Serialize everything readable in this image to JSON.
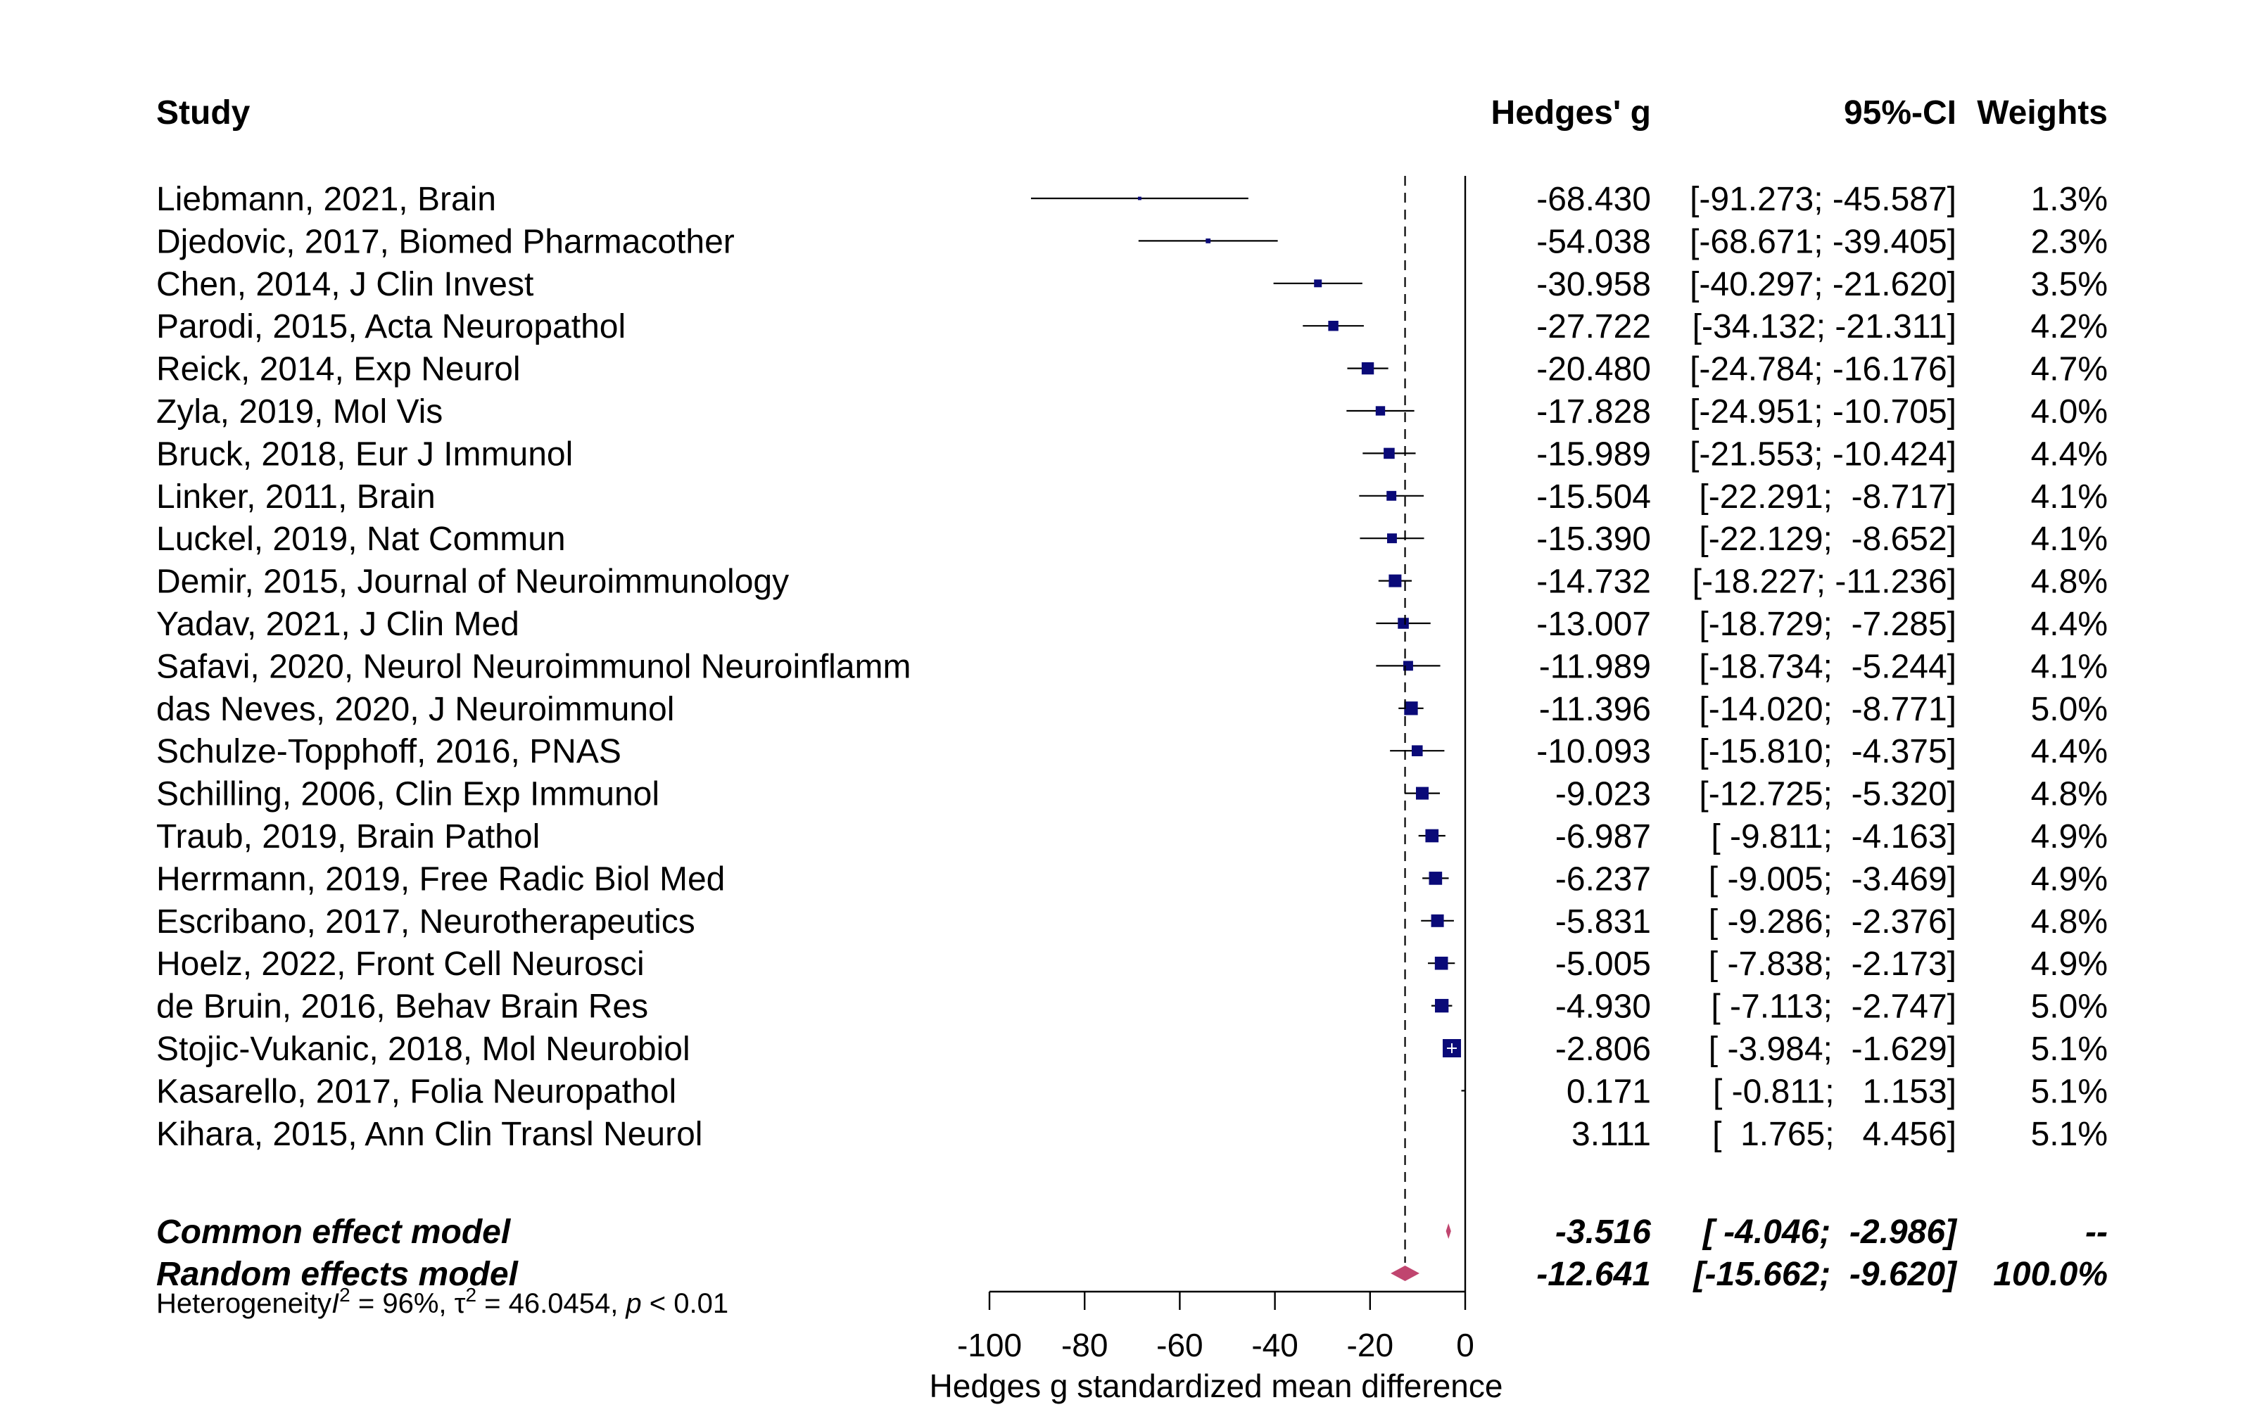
{
  "chart_data": {
    "type": "forest",
    "columns": {
      "study": "Study",
      "effect": "Hedges' g",
      "ci": "95%-CI",
      "weights": "Weights"
    },
    "studies": [
      {
        "label": "Liebmann, 2021, Brain",
        "g": -68.43,
        "lo": -91.273,
        "hi": -45.587,
        "g_text": "-68.430",
        "ci_text": "[-91.273; -45.587]",
        "weight_text": "1.3%",
        "weight": 1.3
      },
      {
        "label": "Djedovic, 2017, Biomed Pharmacother",
        "g": -54.038,
        "lo": -68.671,
        "hi": -39.405,
        "g_text": "-54.038",
        "ci_text": "[-68.671; -39.405]",
        "weight_text": "2.3%",
        "weight": 2.3
      },
      {
        "label": "Chen, 2014, J Clin Invest",
        "g": -30.958,
        "lo": -40.297,
        "hi": -21.62,
        "g_text": "-30.958",
        "ci_text": "[-40.297; -21.620]",
        "weight_text": "3.5%",
        "weight": 3.5
      },
      {
        "label": "Parodi, 2015, Acta Neuropathol",
        "g": -27.722,
        "lo": -34.132,
        "hi": -21.311,
        "g_text": "-27.722",
        "ci_text": "[-34.132; -21.311]",
        "weight_text": "4.2%",
        "weight": 4.2
      },
      {
        "label": "Reick, 2014, Exp Neurol",
        "g": -20.48,
        "lo": -24.784,
        "hi": -16.176,
        "g_text": "-20.480",
        "ci_text": "[-24.784; -16.176]",
        "weight_text": "4.7%",
        "weight": 4.7
      },
      {
        "label": "Zyla, 2019, Mol Vis",
        "g": -17.828,
        "lo": -24.951,
        "hi": -10.705,
        "g_text": "-17.828",
        "ci_text": "[-24.951; -10.705]",
        "weight_text": "4.0%",
        "weight": 4.0
      },
      {
        "label": "Bruck, 2018, Eur J Immunol",
        "g": -15.989,
        "lo": -21.553,
        "hi": -10.424,
        "g_text": "-15.989",
        "ci_text": "[-21.553; -10.424]",
        "weight_text": "4.4%",
        "weight": 4.4
      },
      {
        "label": "Linker, 2011, Brain",
        "g": -15.504,
        "lo": -22.291,
        "hi": -8.717,
        "g_text": "-15.504",
        "ci_text": "[-22.291;  -8.717]",
        "weight_text": "4.1%",
        "weight": 4.1
      },
      {
        "label": "Luckel, 2019, Nat Commun",
        "g": -15.39,
        "lo": -22.129,
        "hi": -8.652,
        "g_text": "-15.390",
        "ci_text": "[-22.129;  -8.652]",
        "weight_text": "4.1%",
        "weight": 4.1
      },
      {
        "label": "Demir, 2015, Journal of Neuroimmunology",
        "g": -14.732,
        "lo": -18.227,
        "hi": -11.236,
        "g_text": "-14.732",
        "ci_text": "[-18.227; -11.236]",
        "weight_text": "4.8%",
        "weight": 4.8
      },
      {
        "label": "Yadav, 2021, J Clin Med",
        "g": -13.007,
        "lo": -18.729,
        "hi": -7.285,
        "g_text": "-13.007",
        "ci_text": "[-18.729;  -7.285]",
        "weight_text": "4.4%",
        "weight": 4.4
      },
      {
        "label": "Safavi, 2020, Neurol Neuroimmunol Neuroinflamm",
        "g": -11.989,
        "lo": -18.734,
        "hi": -5.244,
        "g_text": "-11.989",
        "ci_text": "[-18.734;  -5.244]",
        "weight_text": "4.1%",
        "weight": 4.1
      },
      {
        "label": "das Neves, 2020, J Neuroimmunol",
        "g": -11.396,
        "lo": -14.02,
        "hi": -8.771,
        "g_text": "-11.396",
        "ci_text": "[-14.020;  -8.771]",
        "weight_text": "5.0%",
        "weight": 5.0
      },
      {
        "label": "Schulze-Topphoff, 2016, PNAS",
        "g": -10.093,
        "lo": -15.81,
        "hi": -4.375,
        "g_text": "-10.093",
        "ci_text": "[-15.810;  -4.375]",
        "weight_text": "4.4%",
        "weight": 4.4
      },
      {
        "label": "Schilling, 2006, Clin Exp Immunol",
        "g": -9.023,
        "lo": -12.725,
        "hi": -5.32,
        "g_text": "-9.023",
        "ci_text": "[-12.725;  -5.320]",
        "weight_text": "4.8%",
        "weight": 4.8
      },
      {
        "label": "Traub, 2019, Brain Pathol",
        "g": -6.987,
        "lo": -9.811,
        "hi": -4.163,
        "g_text": "-6.987",
        "ci_text": "[ -9.811;  -4.163]",
        "weight_text": "4.9%",
        "weight": 4.9
      },
      {
        "label": "Herrmann, 2019, Free Radic Biol Med",
        "g": -6.237,
        "lo": -9.005,
        "hi": -3.469,
        "g_text": "-6.237",
        "ci_text": "[ -9.005;  -3.469]",
        "weight_text": "4.9%",
        "weight": 4.9
      },
      {
        "label": "Escribano, 2017, Neurotherapeutics",
        "g": -5.831,
        "lo": -9.286,
        "hi": -2.376,
        "g_text": "-5.831",
        "ci_text": "[ -9.286;  -2.376]",
        "weight_text": "4.8%",
        "weight": 4.8
      },
      {
        "label": "Hoelz, 2022, Front Cell Neurosci",
        "g": -5.005,
        "lo": -7.838,
        "hi": -2.173,
        "g_text": "-5.005",
        "ci_text": "[ -7.838;  -2.173]",
        "weight_text": "4.9%",
        "weight": 4.9
      },
      {
        "label": "de Bruin, 2016, Behav Brain Res",
        "g": -4.93,
        "lo": -7.113,
        "hi": -2.747,
        "g_text": "-4.930",
        "ci_text": "[ -7.113;  -2.747]",
        "weight_text": "5.0%",
        "weight": 5.0
      },
      {
        "label": "Stojic-Vukanic, 2018, Mol Neurobiol",
        "g": -2.806,
        "lo": -3.984,
        "hi": -1.629,
        "g_text": "-2.806",
        "ci_text": "[ -3.984;  -1.629]",
        "weight_text": "5.1%",
        "weight": 5.1
      },
      {
        "label": "Kasarello, 2017, Folia Neuropathol",
        "g": 0.171,
        "lo": -0.811,
        "hi": 1.153,
        "g_text": "0.171",
        "ci_text": "[ -0.811;   1.153]",
        "weight_text": "5.1%",
        "weight": 5.1
      },
      {
        "label": "Kihara, 2015, Ann Clin Transl Neurol",
        "g": 3.111,
        "lo": 1.765,
        "hi": 4.456,
        "g_text": "3.111",
        "ci_text": "[  1.765;   4.456]",
        "weight_text": "5.1%",
        "weight": 5.1
      }
    ],
    "pooled": [
      {
        "label": "Common effect model",
        "g": -3.516,
        "lo": -4.046,
        "hi": -2.986,
        "g_text": "-3.516",
        "ci_text": "[ -4.046;  -2.986]",
        "weight_text": "--"
      },
      {
        "label": "Random effects model",
        "g": -12.641,
        "lo": -15.662,
        "hi": -9.62,
        "g_text": "-12.641",
        "ci_text": "[-15.662;  -9.620]",
        "weight_text": "100.0%"
      }
    ],
    "heterogeneity": {
      "prefix": "Heterogeneity",
      "i2_symbol": "I",
      "i2_text": " = 96%, ",
      "tau2_symbol": "τ",
      "tau2_text": " = 46.0454, ",
      "p_symbol": "p",
      "p_text": " < 0.01"
    },
    "x_axis": {
      "label": "Hedges g standardized mean difference",
      "ticks": [
        -100,
        -80,
        -60,
        -40,
        -20,
        0
      ],
      "tick_labels": [
        "-100",
        "-80",
        "-60",
        "-40",
        "-20",
        "0"
      ],
      "xlim": [
        -100,
        0
      ]
    },
    "colors": {
      "square": "#0a0a78",
      "diamond": "#c0456f",
      "line": "#000000"
    }
  }
}
